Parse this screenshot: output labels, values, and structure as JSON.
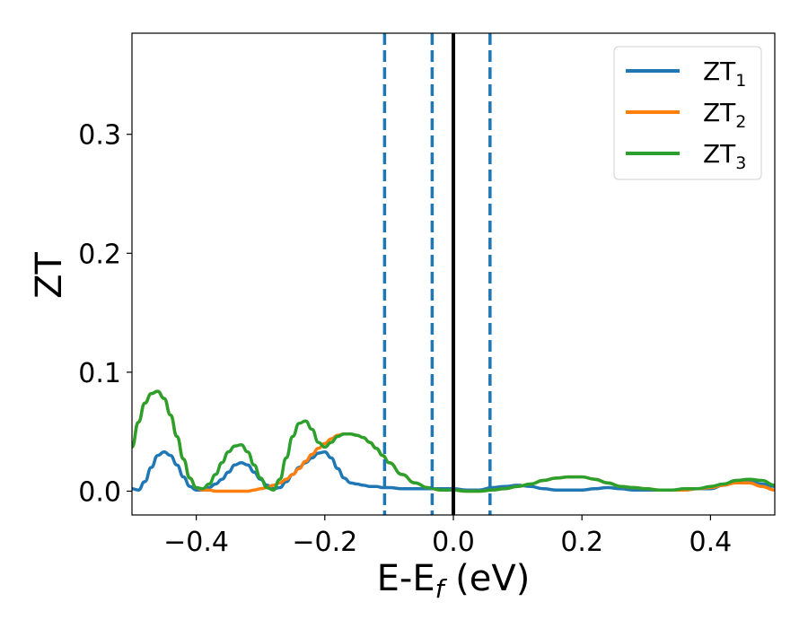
{
  "chart_data": {
    "type": "line",
    "xlabel": "E-E",
    "xlabel_sub": "f",
    "xlabel_unit": " (eV)",
    "ylabel": "ZT",
    "xlim": [
      -0.5,
      0.5
    ],
    "ylim": [
      -0.02,
      0.385
    ],
    "xticks": [
      -0.4,
      -0.2,
      0.0,
      0.2,
      0.4
    ],
    "xtick_labels": [
      "−0.4",
      "−0.2",
      "0.0",
      "0.2",
      "0.4"
    ],
    "yticks": [
      0.0,
      0.1,
      0.2,
      0.3
    ],
    "ytick_labels": [
      "0.0",
      "0.1",
      "0.2",
      "0.3"
    ],
    "grid": false,
    "legend_placement": "top-right",
    "series": [
      {
        "name": "ZT",
        "sub": "1",
        "color": "#1f77b4",
        "x": [
          -0.5,
          -0.49,
          -0.48,
          -0.47,
          -0.46,
          -0.45,
          -0.44,
          -0.43,
          -0.42,
          -0.41,
          -0.4,
          -0.39,
          -0.38,
          -0.37,
          -0.36,
          -0.35,
          -0.34,
          -0.33,
          -0.32,
          -0.31,
          -0.3,
          -0.29,
          -0.28,
          -0.27,
          -0.26,
          -0.25,
          -0.24,
          -0.23,
          -0.22,
          -0.21,
          -0.2,
          -0.19,
          -0.18,
          -0.17,
          -0.16,
          -0.15,
          -0.14,
          -0.13,
          -0.12,
          -0.11,
          -0.1,
          -0.08,
          -0.06,
          -0.04,
          -0.02,
          0.0,
          0.02,
          0.04,
          0.06,
          0.08,
          0.1,
          0.12,
          0.14,
          0.16,
          0.18,
          0.2,
          0.22,
          0.24,
          0.26,
          0.28,
          0.3,
          0.32,
          0.34,
          0.36,
          0.38,
          0.4,
          0.42,
          0.44,
          0.46,
          0.48,
          0.5
        ],
        "y": [
          0.002,
          0.001,
          0.008,
          0.02,
          0.03,
          0.033,
          0.03,
          0.022,
          0.012,
          0.004,
          0.001,
          0.001,
          0.003,
          0.006,
          0.01,
          0.016,
          0.022,
          0.024,
          0.022,
          0.016,
          0.01,
          0.005,
          0.002,
          0.003,
          0.008,
          0.014,
          0.02,
          0.024,
          0.028,
          0.032,
          0.033,
          0.028,
          0.019,
          0.011,
          0.007,
          0.006,
          0.005,
          0.004,
          0.004,
          0.003,
          0.003,
          0.002,
          0.002,
          0.002,
          0.002,
          0.002,
          0.001,
          0.001,
          0.003,
          0.004,
          0.005,
          0.004,
          0.002,
          0.001,
          0.001,
          0.001,
          0.002,
          0.003,
          0.002,
          0.001,
          0.001,
          0.001,
          0.001,
          0.001,
          0.002,
          0.002,
          0.005,
          0.008,
          0.008,
          0.006,
          0.004
        ]
      },
      {
        "name": "ZT",
        "sub": "2",
        "color": "#ff7f0e",
        "x": [
          -0.5,
          -0.49,
          -0.48,
          -0.47,
          -0.46,
          -0.45,
          -0.44,
          -0.43,
          -0.42,
          -0.41,
          -0.4,
          -0.39,
          -0.38,
          -0.37,
          -0.36,
          -0.35,
          -0.34,
          -0.33,
          -0.32,
          -0.31,
          -0.3,
          -0.29,
          -0.28,
          -0.27,
          -0.26,
          -0.25,
          -0.24,
          -0.23,
          -0.22,
          -0.21,
          -0.2,
          -0.19,
          -0.18,
          -0.17,
          -0.16,
          -0.15,
          -0.14,
          -0.13,
          -0.12,
          -0.11,
          -0.1,
          -0.08,
          -0.06,
          -0.04,
          -0.02,
          0.0,
          0.02,
          0.04,
          0.06,
          0.08,
          0.1,
          0.12,
          0.14,
          0.16,
          0.18,
          0.2,
          0.22,
          0.24,
          0.26,
          0.28,
          0.3,
          0.32,
          0.34,
          0.36,
          0.38,
          0.4,
          0.42,
          0.44,
          0.46,
          0.48,
          0.5
        ],
        "y": [
          0.037,
          0.058,
          0.074,
          0.082,
          0.084,
          0.078,
          0.064,
          0.046,
          0.027,
          0.011,
          0.003,
          0.001,
          0.001,
          0.0,
          0.0,
          0.0,
          0.0,
          0.0,
          0.0,
          0.001,
          0.002,
          0.003,
          0.005,
          0.007,
          0.01,
          0.014,
          0.019,
          0.025,
          0.031,
          0.036,
          0.04,
          0.044,
          0.047,
          0.048,
          0.048,
          0.047,
          0.045,
          0.041,
          0.036,
          0.03,
          0.024,
          0.014,
          0.007,
          0.003,
          0.001,
          0.001,
          0.0,
          0.0,
          0.001,
          0.002,
          0.004,
          0.006,
          0.009,
          0.011,
          0.012,
          0.012,
          0.01,
          0.007,
          0.004,
          0.003,
          0.002,
          0.001,
          0.001,
          0.001,
          0.002,
          0.003,
          0.005,
          0.007,
          0.007,
          0.004,
          0.001
        ]
      },
      {
        "name": "ZT",
        "sub": "3",
        "color": "#2ca02c",
        "x": [
          -0.5,
          -0.49,
          -0.48,
          -0.47,
          -0.46,
          -0.45,
          -0.44,
          -0.43,
          -0.42,
          -0.41,
          -0.4,
          -0.39,
          -0.38,
          -0.37,
          -0.36,
          -0.35,
          -0.34,
          -0.33,
          -0.32,
          -0.31,
          -0.3,
          -0.29,
          -0.28,
          -0.27,
          -0.26,
          -0.25,
          -0.24,
          -0.23,
          -0.22,
          -0.21,
          -0.2,
          -0.19,
          -0.18,
          -0.17,
          -0.16,
          -0.15,
          -0.14,
          -0.13,
          -0.12,
          -0.11,
          -0.1,
          -0.08,
          -0.06,
          -0.04,
          -0.02,
          0.0,
          0.02,
          0.04,
          0.06,
          0.08,
          0.1,
          0.12,
          0.14,
          0.16,
          0.18,
          0.2,
          0.22,
          0.24,
          0.26,
          0.28,
          0.3,
          0.32,
          0.34,
          0.36,
          0.38,
          0.4,
          0.42,
          0.44,
          0.46,
          0.48,
          0.5
        ],
        "y": [
          0.037,
          0.058,
          0.074,
          0.082,
          0.084,
          0.078,
          0.064,
          0.046,
          0.027,
          0.011,
          0.003,
          0.002,
          0.006,
          0.014,
          0.024,
          0.033,
          0.038,
          0.039,
          0.033,
          0.022,
          0.011,
          0.003,
          0.001,
          0.01,
          0.028,
          0.046,
          0.057,
          0.059,
          0.052,
          0.041,
          0.037,
          0.041,
          0.046,
          0.048,
          0.048,
          0.047,
          0.045,
          0.041,
          0.036,
          0.03,
          0.024,
          0.014,
          0.007,
          0.003,
          0.001,
          0.001,
          0.0,
          0.0,
          0.001,
          0.002,
          0.004,
          0.006,
          0.009,
          0.011,
          0.012,
          0.012,
          0.01,
          0.007,
          0.004,
          0.003,
          0.002,
          0.001,
          0.001,
          0.002,
          0.002,
          0.004,
          0.006,
          0.009,
          0.01,
          0.009,
          0.005
        ]
      }
    ],
    "vlines": [
      {
        "x": -0.107,
        "style": "dashed",
        "color": "#1f77b4"
      },
      {
        "x": -0.033,
        "style": "dashed",
        "color": "#1f77b4"
      },
      {
        "x": 0.0,
        "style": "solid",
        "color": "#000000"
      },
      {
        "x": 0.057,
        "style": "dashed",
        "color": "#1f77b4"
      }
    ]
  }
}
